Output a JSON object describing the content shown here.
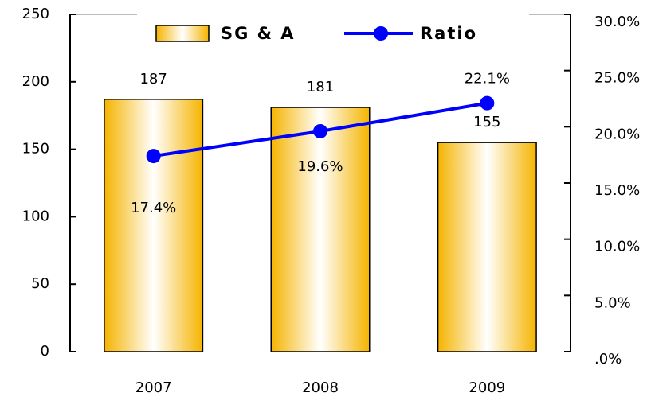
{
  "chart_data": {
    "type": "bar",
    "categories": [
      "2007",
      "2008",
      "2009"
    ],
    "series": [
      {
        "name": "SG & A",
        "color": "#f5b400",
        "values": [
          187,
          181,
          155
        ]
      },
      {
        "name": "Ratio",
        "color": "#0000ff",
        "axis": "y2",
        "type": "line",
        "values": [
          17.4,
          19.6,
          22.1
        ],
        "value_labels": [
          "17.4%",
          "19.6%",
          "22.1%"
        ]
      }
    ],
    "ylim": [
      0,
      250
    ],
    "yticks": [
      0,
      50,
      100,
      150,
      200,
      250
    ],
    "y2lim": [
      0,
      30
    ],
    "y2ticks": [
      {
        "value": 0,
        "label": ".0%"
      },
      {
        "value": 5,
        "label": "5.0%"
      },
      {
        "value": 10,
        "label": "10.0%"
      },
      {
        "value": 15,
        "label": "15.0%"
      },
      {
        "value": 20,
        "label": "20.0%"
      },
      {
        "value": 25,
        "label": "25.0%"
      },
      {
        "value": 30,
        "label": "30.0%"
      }
    ],
    "legend": "top"
  }
}
